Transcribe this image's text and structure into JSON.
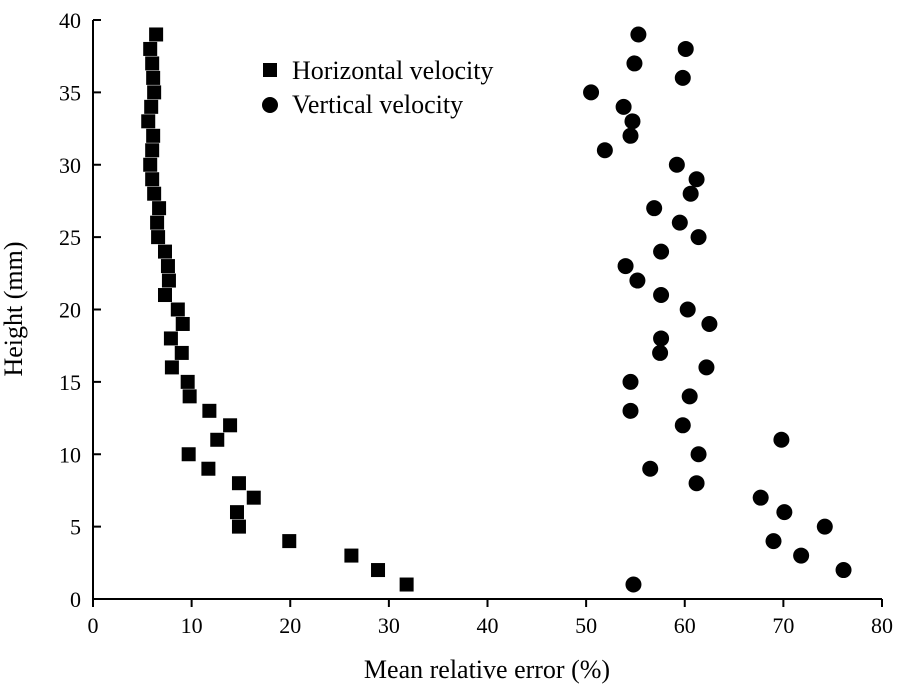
{
  "chart_data": {
    "type": "scatter",
    "title": "",
    "xlabel": "Mean relative error  (%)",
    "ylabel": "Height (mm)",
    "xlim": [
      0,
      80
    ],
    "ylim": [
      0,
      40
    ],
    "x_ticks": [
      0,
      10,
      20,
      30,
      40,
      50,
      60,
      70,
      80
    ],
    "y_ticks": [
      0,
      5,
      10,
      15,
      20,
      25,
      30,
      35,
      40
    ],
    "grid": false,
    "legend_position": "top-center",
    "series": [
      {
        "name": "Horizontal velocity",
        "marker": "square",
        "color": "#000000",
        "points": [
          [
            6.4,
            39
          ],
          [
            5.8,
            38
          ],
          [
            6.0,
            37
          ],
          [
            6.1,
            36
          ],
          [
            6.2,
            35
          ],
          [
            5.9,
            34
          ],
          [
            5.6,
            33
          ],
          [
            6.1,
            32
          ],
          [
            6.0,
            31
          ],
          [
            5.8,
            30
          ],
          [
            6.0,
            29
          ],
          [
            6.2,
            28
          ],
          [
            6.7,
            27
          ],
          [
            6.5,
            26
          ],
          [
            6.6,
            25
          ],
          [
            7.3,
            24
          ],
          [
            7.6,
            23
          ],
          [
            7.7,
            22
          ],
          [
            7.3,
            21
          ],
          [
            8.6,
            20
          ],
          [
            9.1,
            19
          ],
          [
            7.9,
            18
          ],
          [
            9.0,
            17
          ],
          [
            8.0,
            16
          ],
          [
            9.6,
            15
          ],
          [
            9.8,
            14
          ],
          [
            11.8,
            13
          ],
          [
            13.9,
            12
          ],
          [
            12.6,
            11
          ],
          [
            9.7,
            10
          ],
          [
            11.7,
            9
          ],
          [
            14.8,
            8
          ],
          [
            16.3,
            7
          ],
          [
            14.6,
            6
          ],
          [
            14.8,
            5
          ],
          [
            19.9,
            4
          ],
          [
            26.2,
            3
          ],
          [
            28.9,
            2
          ],
          [
            31.8,
            1
          ]
        ]
      },
      {
        "name": "Vertical velocity",
        "marker": "circle",
        "color": "#000000",
        "points": [
          [
            55.3,
            39
          ],
          [
            60.1,
            38
          ],
          [
            54.9,
            37
          ],
          [
            59.8,
            36
          ],
          [
            50.5,
            35
          ],
          [
            53.8,
            34
          ],
          [
            54.7,
            33
          ],
          [
            54.5,
            32
          ],
          [
            51.9,
            31
          ],
          [
            59.2,
            30
          ],
          [
            61.2,
            29
          ],
          [
            60.6,
            28
          ],
          [
            56.9,
            27
          ],
          [
            59.5,
            26
          ],
          [
            61.4,
            25
          ],
          [
            57.6,
            24
          ],
          [
            54.0,
            23
          ],
          [
            55.2,
            22
          ],
          [
            57.6,
            21
          ],
          [
            60.3,
            20
          ],
          [
            62.5,
            19
          ],
          [
            57.6,
            18
          ],
          [
            57.5,
            17
          ],
          [
            62.2,
            16
          ],
          [
            54.5,
            15
          ],
          [
            60.5,
            14
          ],
          [
            54.5,
            13
          ],
          [
            59.8,
            12
          ],
          [
            69.8,
            11
          ],
          [
            61.4,
            10
          ],
          [
            56.5,
            9
          ],
          [
            61.2,
            8
          ],
          [
            67.7,
            7
          ],
          [
            70.1,
            6
          ],
          [
            74.2,
            5
          ],
          [
            69.0,
            4
          ],
          [
            71.8,
            3
          ],
          [
            76.1,
            2
          ],
          [
            54.8,
            1
          ]
        ]
      }
    ]
  }
}
